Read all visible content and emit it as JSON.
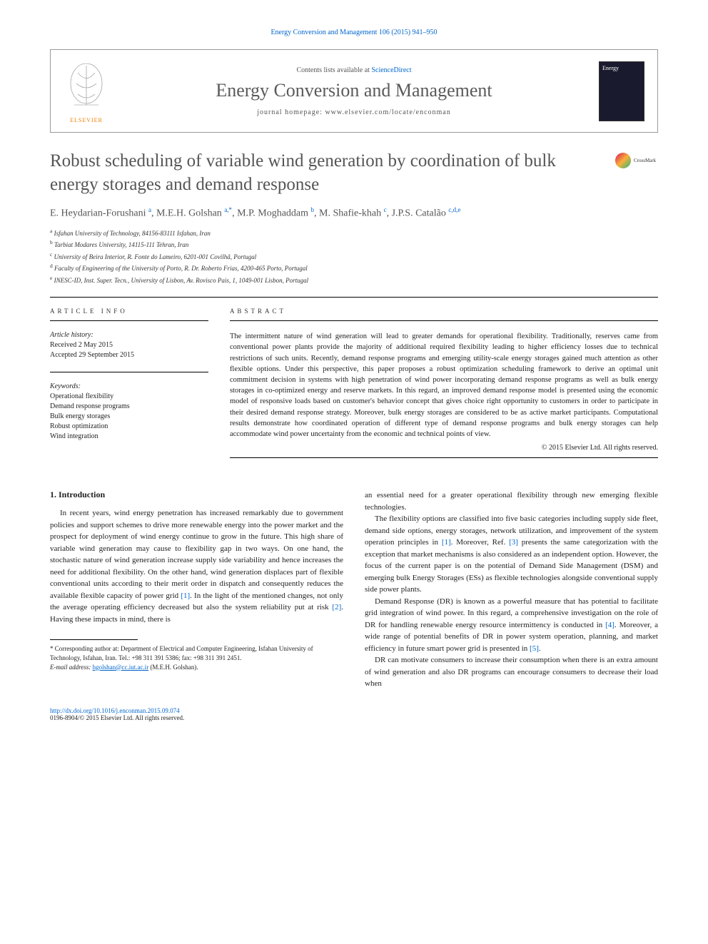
{
  "citation": "Energy Conversion and Management 106 (2015) 941–950",
  "header": {
    "contents_prefix": "Contents lists available at ",
    "contents_link": "ScienceDirect",
    "journal_name": "Energy Conversion and Management",
    "homepage_prefix": "journal homepage: ",
    "homepage_url": "www.elsevier.com/locate/enconman",
    "elsevier_label": "ELSEVIER",
    "cover_text": "Energy"
  },
  "article": {
    "title": "Robust scheduling of variable wind generation by coordination of bulk energy storages and demand response",
    "crossmark_label": "CrossMark",
    "authors_html": "E. Heydarian-Forushani <sup>a</sup>, M.E.H. Golshan <sup>a,*</sup>, M.P. Moghaddam <sup>b</sup>, M. Shafie-khah <sup>c</sup>, J.P.S. Catalão <sup>c,d,e</sup>",
    "affiliations": [
      "a Isfahan University of Technology, 84156-83111 Isfahan, Iran",
      "b Tarbiat Modares University, 14115-111 Tehran, Iran",
      "c University of Beira Interior, R. Fonte do Lameiro, 6201-001 Covilhã, Portugal",
      "d Faculty of Engineering of the University of Porto, R. Dr. Roberto Frias, 4200-465 Porto, Portugal",
      "e INESC-ID, Inst. Super. Tecn., University of Lisbon, Av. Rovisco Pais, 1, 1049-001 Lisbon, Portugal"
    ]
  },
  "meta": {
    "info_heading": "ARTICLE INFO",
    "abstract_heading": "ABSTRACT",
    "history_label": "Article history:",
    "received": "Received 2 May 2015",
    "accepted": "Accepted 29 September 2015",
    "keywords_label": "Keywords:",
    "keywords": [
      "Operational flexibility",
      "Demand response programs",
      "Bulk energy storages",
      "Robust optimization",
      "Wind integration"
    ],
    "abstract": "The intermittent nature of wind generation will lead to greater demands for operational flexibility. Traditionally, reserves came from conventional power plants provide the majority of additional required flexibility leading to higher efficiency losses due to technical restrictions of such units. Recently, demand response programs and emerging utility-scale energy storages gained much attention as other flexible options. Under this perspective, this paper proposes a robust optimization scheduling framework to derive an optimal unit commitment decision in systems with high penetration of wind power incorporating demand response programs as well as bulk energy storages in co-optimized energy and reserve markets. In this regard, an improved demand response model is presented using the economic model of responsive loads based on customer's behavior concept that gives choice right opportunity to customers in order to participate in their desired demand response strategy. Moreover, bulk energy storages are considered to be as active market participants. Computational results demonstrate how coordinated operation of different type of demand response programs and bulk energy storages can help accommodate wind power uncertainty from the economic and technical points of view.",
    "copyright": "© 2015 Elsevier Ltd. All rights reserved."
  },
  "body": {
    "section1_heading": "1. Introduction",
    "col1_p1": "In recent years, wind energy penetration has increased remarkably due to government policies and support schemes to drive more renewable energy into the power market and the prospect for deployment of wind energy continue to grow in the future. This high share of variable wind generation may cause to flexibility gap in two ways. On one hand, the stochastic nature of wind generation increase supply side variability and hence increases the need for additional flexibility. On the other hand, wind generation displaces part of flexible conventional units according to their merit order in dispatch and consequently reduces the available flexible capacity of power grid [1]. In the light of the mentioned changes, not only the average operating efficiency decreased but also the system reliability put at risk [2]. Having these impacts in mind, there is",
    "col2_p1": "an essential need for a greater operational flexibility through new emerging flexible technologies.",
    "col2_p2": "The flexibility options are classified into five basic categories including supply side fleet, demand side options, energy storages, network utilization, and improvement of the system operation principles in [1]. Moreover, Ref. [3] presents the same categorization with the exception that market mechanisms is also considered as an independent option. However, the focus of the current paper is on the potential of Demand Side Management (DSM) and emerging bulk Energy Storages (ESs) as flexible technologies alongside conventional supply side power plants.",
    "col2_p3": "Demand Response (DR) is known as a powerful measure that has potential to facilitate grid integration of wind power. In this regard, a comprehensive investigation on the role of DR for handling renewable energy resource intermittency is conducted in [4]. Moreover, a wide range of potential benefits of DR in power system operation, planning, and market efficiency in future smart power grid is presented in [5].",
    "col2_p4": "DR can motivate consumers to increase their consumption when there is an extra amount of wind generation and also DR programs can encourage consumers to decrease their load when"
  },
  "footnote": {
    "corresponding": "* Corresponding author at: Department of Electrical and Computer Engineering, Isfahan University of Technology, Isfahan, Iran. Tel.: +98 311 391 5386; fax: +98 311 391 2451.",
    "email_label": "E-mail address: ",
    "email": "hgolshan@cc.iut.ac.ir",
    "email_suffix": " (M.E.H. Golshan)."
  },
  "footer": {
    "doi": "http://dx.doi.org/10.1016/j.enconman.2015.09.074",
    "issn_line": "0196-8904/© 2015 Elsevier Ltd. All rights reserved."
  },
  "colors": {
    "link": "#0066cc",
    "text": "#222",
    "title_gray": "#555",
    "orange": "#F57C00"
  }
}
